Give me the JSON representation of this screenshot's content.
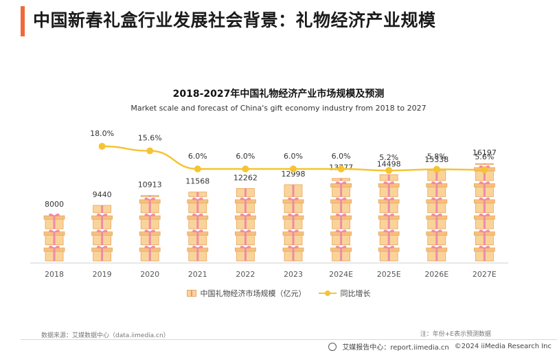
{
  "page": {
    "title": "中国新春礼盒行业发展社会背景：礼物经济产业规模"
  },
  "chart_data": {
    "type": "bar",
    "title": "2018-2027年中国礼物经济产业市场规模及预测",
    "subtitle": "Market scale and forecast of China's gift economy industry from 2018 to 2027",
    "categories": [
      "2018",
      "2019",
      "2020",
      "2021",
      "2022",
      "2023",
      "2024E",
      "2025E",
      "2026E",
      "2027E"
    ],
    "series": [
      {
        "name": "中国礼物经济市场规模（亿元）",
        "type": "bar",
        "values": [
          8000,
          9440,
          10913,
          11568,
          12262,
          12998,
          13777,
          14498,
          15338,
          16197
        ],
        "labels": [
          "8000",
          "9440",
          "10913",
          "11568",
          "12262",
          "12998",
          "13777",
          "14498",
          "15338",
          "16197"
        ]
      },
      {
        "name": "同比增长",
        "type": "line",
        "x": [
          "2019",
          "2020",
          "2021",
          "2022",
          "2023",
          "2024E",
          "2025E",
          "2026E",
          "2027E"
        ],
        "values": [
          18.0,
          15.6,
          6.0,
          6.0,
          6.0,
          6.0,
          5.2,
          5.8,
          5.6
        ],
        "labels": [
          "18.0%",
          "15.6%",
          "6.0%",
          "6.0%",
          "6.0%",
          "6.0%",
          "5.2%",
          "5.8%",
          "5.6%"
        ]
      }
    ],
    "legend_position": "bottom",
    "grid": false,
    "colors": {
      "gift_box": "#f9d49a",
      "gift_ribbon": "#f08aa8",
      "line": "#f5c431"
    }
  },
  "footer": {
    "source": "数据来源：艾媒数据中心（data.iimedia.cn）",
    "note": "注：年份+E表示预测数据",
    "report_center": "艾媒报告中心：report.iimedia.cn",
    "copyright": "©2024  iiMedia Research  Inc"
  },
  "colors": {
    "accent": "#ef6a3a"
  }
}
